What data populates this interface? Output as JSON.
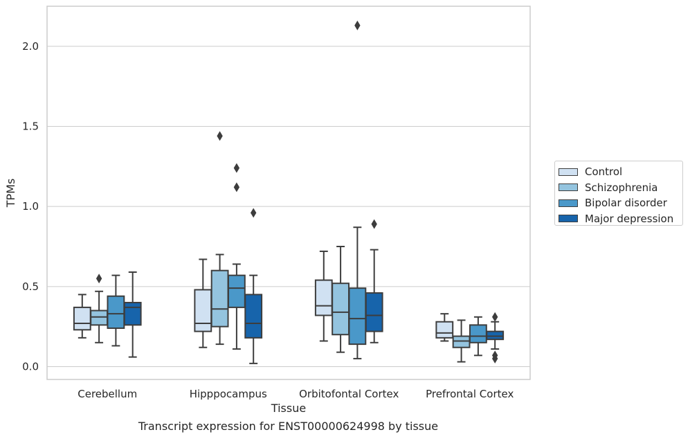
{
  "chart_data": {
    "type": "boxplot",
    "title": "",
    "caption": "Transcript expression for ENST00000624998 by tissue",
    "xlabel": "Tissue",
    "ylabel": "TPMs",
    "ylim": [
      -0.08,
      2.25
    ],
    "yticks": [
      0.0,
      0.5,
      1.0,
      1.5,
      2.0
    ],
    "ytick_labels": [
      "0.0",
      "0.5",
      "1.0",
      "1.5",
      "2.0"
    ],
    "grid": "horizontal",
    "legend_position": "right",
    "categories": [
      "Cerebellum",
      "Hipppocampus",
      "Orbitofontal Cortex",
      "Prefrontal Cortex"
    ],
    "series": [
      {
        "name": "Control",
        "color": "#d0e1f2",
        "boxes": [
          {
            "whislo": 0.18,
            "q1": 0.23,
            "med": 0.27,
            "q3": 0.37,
            "whishi": 0.45,
            "fliers": []
          },
          {
            "whislo": 0.12,
            "q1": 0.22,
            "med": 0.27,
            "q3": 0.48,
            "whishi": 0.67,
            "fliers": []
          },
          {
            "whislo": 0.16,
            "q1": 0.32,
            "med": 0.38,
            "q3": 0.54,
            "whishi": 0.72,
            "fliers": []
          },
          {
            "whislo": 0.16,
            "q1": 0.18,
            "med": 0.21,
            "q3": 0.28,
            "whishi": 0.33,
            "fliers": []
          }
        ]
      },
      {
        "name": "Schizophrenia",
        "color": "#94c4df",
        "boxes": [
          {
            "whislo": 0.15,
            "q1": 0.26,
            "med": 0.31,
            "q3": 0.35,
            "whishi": 0.47,
            "fliers": [
              0.55
            ]
          },
          {
            "whislo": 0.14,
            "q1": 0.25,
            "med": 0.36,
            "q3": 0.6,
            "whishi": 0.7,
            "fliers": [
              1.44
            ]
          },
          {
            "whislo": 0.09,
            "q1": 0.2,
            "med": 0.34,
            "q3": 0.52,
            "whishi": 0.75,
            "fliers": []
          },
          {
            "whislo": 0.03,
            "q1": 0.12,
            "med": 0.16,
            "q3": 0.19,
            "whishi": 0.29,
            "fliers": []
          }
        ]
      },
      {
        "name": "Bipolar disorder",
        "color": "#4a98c9",
        "boxes": [
          {
            "whislo": 0.13,
            "q1": 0.24,
            "med": 0.33,
            "q3": 0.44,
            "whishi": 0.57,
            "fliers": []
          },
          {
            "whislo": 0.11,
            "q1": 0.37,
            "med": 0.49,
            "q3": 0.57,
            "whishi": 0.64,
            "fliers": [
              1.24,
              1.12
            ]
          },
          {
            "whislo": 0.05,
            "q1": 0.14,
            "med": 0.3,
            "q3": 0.49,
            "whishi": 0.87,
            "fliers": [
              2.13
            ]
          },
          {
            "whislo": 0.07,
            "q1": 0.15,
            "med": 0.19,
            "q3": 0.26,
            "whishi": 0.31,
            "fliers": []
          }
        ]
      },
      {
        "name": "Major depression",
        "color": "#1764ab",
        "boxes": [
          {
            "whislo": 0.06,
            "q1": 0.26,
            "med": 0.37,
            "q3": 0.4,
            "whishi": 0.59,
            "fliers": []
          },
          {
            "whislo": 0.02,
            "q1": 0.18,
            "med": 0.27,
            "q3": 0.45,
            "whishi": 0.57,
            "fliers": [
              0.96
            ]
          },
          {
            "whislo": 0.15,
            "q1": 0.22,
            "med": 0.32,
            "q3": 0.46,
            "whishi": 0.73,
            "fliers": [
              0.89
            ]
          },
          {
            "whislo": 0.11,
            "q1": 0.17,
            "med": 0.19,
            "q3": 0.22,
            "whishi": 0.28,
            "fliers": [
              0.31,
              0.07,
              0.05
            ]
          }
        ]
      }
    ]
  }
}
